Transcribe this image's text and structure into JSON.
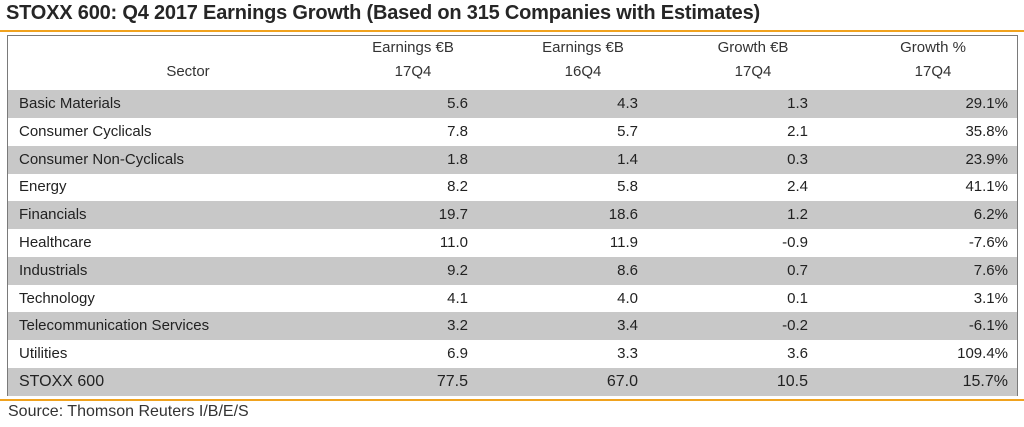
{
  "title": "STOXX 600: Q4 2017 Earnings Growth (Based on 315 Companies with Estimates)",
  "source": "Source: Thomson Reuters I/B/E/S",
  "colors": {
    "accent_rule": "#f0a21e",
    "row_shade": "#c8c8c8",
    "border": "#7a7a7a"
  },
  "header": {
    "sector": "Sector",
    "col1": [
      "Earnings €B",
      "17Q4"
    ],
    "col2": [
      "Earnings €B",
      "16Q4"
    ],
    "col3": [
      "Growth €B",
      "17Q4"
    ],
    "col4": [
      "Growth %",
      "17Q4"
    ]
  },
  "chart_data": {
    "type": "table",
    "title": "STOXX 600: Q4 2017 Earnings Growth (Based on 315 Companies with Estimates)",
    "columns": [
      "Sector",
      "Earnings €B 17Q4",
      "Earnings €B 16Q4",
      "Growth €B 17Q4",
      "Growth % 17Q4"
    ],
    "rows": [
      [
        "Basic Materials",
        "5.6",
        "4.3",
        "1.3",
        "29.1%"
      ],
      [
        "Consumer Cyclicals",
        "7.8",
        "5.7",
        "2.1",
        "35.8%"
      ],
      [
        "Consumer Non-Cyclicals",
        "1.8",
        "1.4",
        "0.3",
        "23.9%"
      ],
      [
        "Energy",
        "8.2",
        "5.8",
        "2.4",
        "41.1%"
      ],
      [
        "Financials",
        "19.7",
        "18.6",
        "1.2",
        "6.2%"
      ],
      [
        "Healthcare",
        "11.0",
        "11.9",
        "-0.9",
        "-7.6%"
      ],
      [
        "Industrials",
        "9.2",
        "8.6",
        "0.7",
        "7.6%"
      ],
      [
        "Technology",
        "4.1",
        "4.0",
        "0.1",
        "3.1%"
      ],
      [
        "Telecommunication Services",
        "3.2",
        "3.4",
        "-0.2",
        "-6.1%"
      ],
      [
        "Utilities",
        "6.9",
        "3.3",
        "3.6",
        "109.4%"
      ],
      [
        "STOXX 600",
        "77.5",
        "67.0",
        "10.5",
        "15.7%"
      ]
    ]
  }
}
